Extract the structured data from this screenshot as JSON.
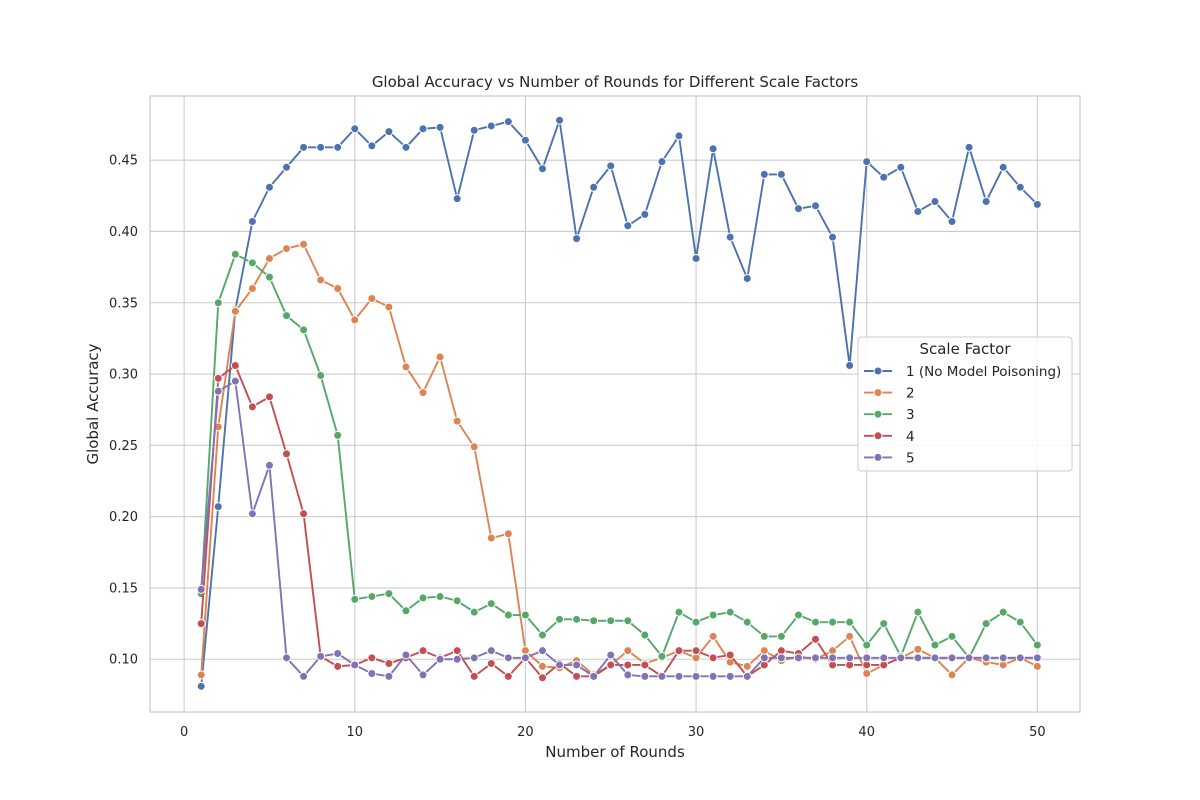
{
  "chart_data": {
    "type": "line",
    "title": "Global Accuracy vs Number of Rounds for Different Scale Factors",
    "xlabel": "Number of Rounds",
    "ylabel": "Global Accuracy",
    "xlim": [
      -2,
      52.5
    ],
    "ylim": [
      0.063,
      0.495
    ],
    "xticks": [
      0,
      10,
      20,
      30,
      40,
      50
    ],
    "xtick_labels": [
      "0",
      "10",
      "20",
      "30",
      "40",
      "50"
    ],
    "yticks": [
      0.1,
      0.15,
      0.2,
      0.25,
      0.3,
      0.35,
      0.4,
      0.45
    ],
    "ytick_labels": [
      "0.10",
      "0.15",
      "0.20",
      "0.25",
      "0.30",
      "0.35",
      "0.40",
      "0.45"
    ],
    "grid": true,
    "legend": {
      "title": "Scale Factor",
      "position": "right"
    },
    "x": [
      1,
      2,
      3,
      4,
      5,
      6,
      7,
      8,
      9,
      10,
      11,
      12,
      13,
      14,
      15,
      16,
      17,
      18,
      19,
      20,
      21,
      22,
      23,
      24,
      25,
      26,
      27,
      28,
      29,
      30,
      31,
      32,
      33,
      34,
      35,
      36,
      37,
      38,
      39,
      40,
      41,
      42,
      43,
      44,
      45,
      46,
      47,
      48,
      49,
      50
    ],
    "series": [
      {
        "name": "1 (No Model Poisoning)",
        "color": "#4c72b0",
        "values": [
          0.081,
          0.207,
          0.345,
          0.407,
          0.431,
          0.445,
          0.459,
          0.459,
          0.459,
          0.472,
          0.46,
          0.47,
          0.459,
          0.472,
          0.473,
          0.423,
          0.471,
          0.474,
          0.477,
          0.464,
          0.444,
          0.478,
          0.395,
          0.431,
          0.446,
          0.404,
          0.412,
          0.449,
          0.467,
          0.381,
          0.458,
          0.396,
          0.367,
          0.44,
          0.44,
          0.416,
          0.418,
          0.396,
          0.306,
          0.449,
          0.438,
          0.445,
          0.414,
          0.421,
          0.407,
          0.459,
          0.421,
          0.445,
          0.431,
          0.419
        ]
      },
      {
        "name": "2",
        "color": "#dd8452",
        "values": [
          0.089,
          0.263,
          0.344,
          0.36,
          0.381,
          0.388,
          0.391,
          0.366,
          0.36,
          0.338,
          0.353,
          0.347,
          0.305,
          0.287,
          0.312,
          0.267,
          0.249,
          0.185,
          0.188,
          0.106,
          0.095,
          0.094,
          0.099,
          0.089,
          0.096,
          0.106,
          0.097,
          0.101,
          0.106,
          0.101,
          0.116,
          0.098,
          0.095,
          0.106,
          0.099,
          0.102,
          0.1,
          0.106,
          0.116,
          0.09,
          0.096,
          0.101,
          0.107,
          0.101,
          0.089,
          0.101,
          0.098,
          0.096,
          0.101,
          0.095
        ]
      },
      {
        "name": "3",
        "color": "#55a868",
        "values": [
          0.146,
          0.35,
          0.384,
          0.378,
          0.368,
          0.341,
          0.331,
          0.299,
          0.257,
          0.142,
          0.144,
          0.146,
          0.134,
          0.143,
          0.144,
          0.141,
          0.133,
          0.139,
          0.131,
          0.131,
          0.117,
          0.128,
          0.128,
          0.127,
          0.127,
          0.127,
          0.117,
          0.102,
          0.133,
          0.126,
          0.131,
          0.133,
          0.126,
          0.116,
          0.116,
          0.131,
          0.126,
          0.126,
          0.126,
          0.11,
          0.125,
          0.102,
          0.133,
          0.11,
          0.116,
          0.101,
          0.125,
          0.133,
          0.126,
          0.11
        ]
      },
      {
        "name": "4",
        "color": "#c44e52",
        "values": [
          0.125,
          0.297,
          0.306,
          0.277,
          0.284,
          0.244,
          0.202,
          0.102,
          0.095,
          0.096,
          0.101,
          0.097,
          0.101,
          0.106,
          0.101,
          0.106,
          0.088,
          0.097,
          0.088,
          0.101,
          0.087,
          0.097,
          0.088,
          0.088,
          0.096,
          0.096,
          0.096,
          0.088,
          0.106,
          0.106,
          0.101,
          0.103,
          0.088,
          0.096,
          0.106,
          0.104,
          0.114,
          0.096,
          0.096,
          0.096,
          0.096,
          0.101,
          0.101,
          0.101,
          0.101,
          0.101,
          0.101,
          0.101,
          0.101,
          0.101
        ]
      },
      {
        "name": "5",
        "color": "#8172b3",
        "values": [
          0.149,
          0.288,
          0.295,
          0.202,
          0.236,
          0.101,
          0.088,
          0.102,
          0.104,
          0.096,
          0.09,
          0.088,
          0.103,
          0.089,
          0.1,
          0.1,
          0.101,
          0.106,
          0.101,
          0.101,
          0.106,
          0.096,
          0.096,
          0.088,
          0.103,
          0.089,
          0.088,
          0.088,
          0.088,
          0.088,
          0.088,
          0.088,
          0.088,
          0.101,
          0.101,
          0.101,
          0.101,
          0.101,
          0.101,
          0.101,
          0.101,
          0.101,
          0.101,
          0.101,
          0.101,
          0.101,
          0.101,
          0.101,
          0.101,
          0.101
        ]
      }
    ]
  }
}
